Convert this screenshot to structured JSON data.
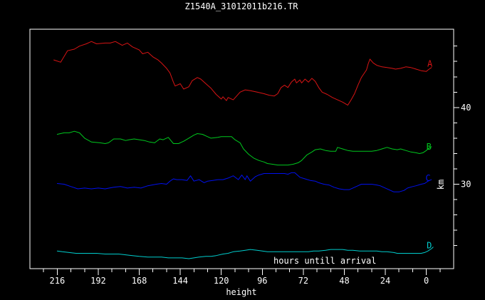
{
  "chart_data": {
    "type": "line",
    "title": "Z1540A_31012011b216.TR",
    "xlabel": "height",
    "ylabel": "km",
    "annotation": "hours untill arrival",
    "background": "#000000",
    "frame_color": "#ffffff",
    "x_axis": {
      "range": [
        232,
        -16
      ],
      "major_ticks": [
        216,
        192,
        168,
        144,
        120,
        96,
        72,
        48,
        24,
        0
      ],
      "minor_step": 8,
      "direction": "decreasing"
    },
    "y_axis": {
      "side": "right",
      "range": [
        50.2,
        19.0
      ],
      "major_ticks": [
        40,
        30
      ],
      "minor_step": 2,
      "minor_min": 22,
      "minor_max": 48
    },
    "series": [
      {
        "name": "A",
        "color": "#d81414",
        "label_pos": [
          -2.1,
          45.7
        ],
        "points": [
          [
            218,
            46.2
          ],
          [
            214,
            45.9
          ],
          [
            210,
            47.4
          ],
          [
            206,
            47.6
          ],
          [
            203,
            48
          ],
          [
            199,
            48.3
          ],
          [
            196,
            48.6
          ],
          [
            193,
            48.3
          ],
          [
            188,
            48.4
          ],
          [
            185,
            48.4
          ],
          [
            182,
            48.6
          ],
          [
            178,
            48.1
          ],
          [
            175,
            48.4
          ],
          [
            172,
            47.9
          ],
          [
            168,
            47.5
          ],
          [
            166,
            47
          ],
          [
            163,
            47.2
          ],
          [
            160,
            46.6
          ],
          [
            157,
            46.2
          ],
          [
            155,
            45.8
          ],
          [
            152,
            45.1
          ],
          [
            150,
            44.5
          ],
          [
            148,
            43.3
          ],
          [
            147,
            42.8
          ],
          [
            144,
            43.1
          ],
          [
            142,
            42.4
          ],
          [
            139,
            42.7
          ],
          [
            137,
            43.5
          ],
          [
            134,
            43.9
          ],
          [
            132,
            43.7
          ],
          [
            129,
            43.1
          ],
          [
            126,
            42.5
          ],
          [
            123,
            41.7
          ],
          [
            120,
            41.1
          ],
          [
            119,
            41.4
          ],
          [
            117,
            40.9
          ],
          [
            116,
            41.3
          ],
          [
            113,
            41
          ],
          [
            111,
            41.5
          ],
          [
            109,
            42
          ],
          [
            106,
            42.3
          ],
          [
            103,
            42.2
          ],
          [
            99,
            42
          ],
          [
            95,
            41.8
          ],
          [
            92,
            41.6
          ],
          [
            89,
            41.5
          ],
          [
            87,
            41.8
          ],
          [
            85,
            42.6
          ],
          [
            83,
            42.9
          ],
          [
            81,
            42.6
          ],
          [
            79,
            43.3
          ],
          [
            77,
            43.7
          ],
          [
            76,
            43.2
          ],
          [
            74,
            43.6
          ],
          [
            73,
            43.2
          ],
          [
            71,
            43.7
          ],
          [
            69,
            43.3
          ],
          [
            67,
            43.8
          ],
          [
            65,
            43.4
          ],
          [
            63,
            42.6
          ],
          [
            61,
            42
          ],
          [
            58,
            41.7
          ],
          [
            55,
            41.3
          ],
          [
            52,
            41
          ],
          [
            49,
            40.7
          ],
          [
            46,
            40.3
          ],
          [
            44,
            41
          ],
          [
            42,
            41.8
          ],
          [
            40,
            42.9
          ],
          [
            38,
            43.9
          ],
          [
            35,
            44.9
          ],
          [
            34,
            45.7
          ],
          [
            33,
            46.3
          ],
          [
            31,
            45.8
          ],
          [
            29,
            45.5
          ],
          [
            26,
            45.3
          ],
          [
            23,
            45.2
          ],
          [
            20,
            45.1
          ],
          [
            18,
            45
          ],
          [
            15,
            45.1
          ],
          [
            12,
            45.3
          ],
          [
            9,
            45.2
          ],
          [
            6,
            45
          ],
          [
            3,
            44.8
          ],
          [
            0,
            44.7
          ],
          [
            -1,
            44.9
          ],
          [
            -3,
            45.2
          ]
        ]
      },
      {
        "name": "B",
        "color": "#00c81e",
        "label_pos": [
          -1.5,
          34.9
        ],
        "points": [
          [
            216,
            36.5
          ],
          [
            212,
            36.7
          ],
          [
            209,
            36.7
          ],
          [
            206,
            36.9
          ],
          [
            203,
            36.7
          ],
          [
            200,
            36
          ],
          [
            196,
            35.5
          ],
          [
            191,
            35.4
          ],
          [
            188,
            35.3
          ],
          [
            186,
            35.4
          ],
          [
            183,
            35.9
          ],
          [
            179,
            35.9
          ],
          [
            176,
            35.7
          ],
          [
            174,
            35.8
          ],
          [
            171,
            35.9
          ],
          [
            168,
            35.8
          ],
          [
            165,
            35.7
          ],
          [
            162,
            35.5
          ],
          [
            159,
            35.4
          ],
          [
            156,
            35.9
          ],
          [
            154,
            35.8
          ],
          [
            151,
            36.1
          ],
          [
            148,
            35.3
          ],
          [
            145,
            35.3
          ],
          [
            142,
            35.6
          ],
          [
            139,
            36
          ],
          [
            136,
            36.4
          ],
          [
            134,
            36.6
          ],
          [
            131,
            36.5
          ],
          [
            128,
            36.2
          ],
          [
            126,
            36
          ],
          [
            122,
            36.1
          ],
          [
            120,
            36.2
          ],
          [
            117,
            36.2
          ],
          [
            114,
            36.2
          ],
          [
            112,
            35.8
          ],
          [
            109,
            35.4
          ],
          [
            107,
            34.6
          ],
          [
            104,
            33.9
          ],
          [
            101,
            33.4
          ],
          [
            98,
            33.1
          ],
          [
            95,
            32.9
          ],
          [
            93,
            32.7
          ],
          [
            90,
            32.6
          ],
          [
            87,
            32.5
          ],
          [
            84,
            32.5
          ],
          [
            81,
            32.5
          ],
          [
            78,
            32.6
          ],
          [
            75,
            32.8
          ],
          [
            73,
            33.1
          ],
          [
            70,
            33.8
          ],
          [
            67,
            34.2
          ],
          [
            65,
            34.5
          ],
          [
            62,
            34.6
          ],
          [
            59,
            34.4
          ],
          [
            56,
            34.3
          ],
          [
            53,
            34.3
          ],
          [
            52,
            34.8
          ],
          [
            49,
            34.6
          ],
          [
            46,
            34.4
          ],
          [
            43,
            34.3
          ],
          [
            40,
            34.3
          ],
          [
            37,
            34.3
          ],
          [
            35,
            34.3
          ],
          [
            32,
            34.3
          ],
          [
            29,
            34.4
          ],
          [
            26,
            34.6
          ],
          [
            23,
            34.8
          ],
          [
            20,
            34.6
          ],
          [
            17,
            34.5
          ],
          [
            15,
            34.6
          ],
          [
            12,
            34.4
          ],
          [
            9,
            34.2
          ],
          [
            6,
            34.1
          ],
          [
            4,
            34
          ],
          [
            2,
            34.1
          ],
          [
            0,
            34.4
          ],
          [
            -2,
            34.8
          ],
          [
            -3,
            34.9
          ]
        ]
      },
      {
        "name": "C",
        "color": "#0010ee",
        "label_pos": [
          -1.0,
          30.8
        ],
        "points": [
          [
            216,
            30.1
          ],
          [
            212,
            30
          ],
          [
            208,
            29.7
          ],
          [
            204,
            29.4
          ],
          [
            200,
            29.5
          ],
          [
            196,
            29.4
          ],
          [
            192,
            29.5
          ],
          [
            188,
            29.4
          ],
          [
            183,
            29.6
          ],
          [
            179,
            29.7
          ],
          [
            175,
            29.5
          ],
          [
            171,
            29.6
          ],
          [
            167,
            29.5
          ],
          [
            163,
            29.8
          ],
          [
            158,
            30
          ],
          [
            155,
            30.1
          ],
          [
            152,
            30
          ],
          [
            150,
            30.4
          ],
          [
            148,
            30.7
          ],
          [
            146,
            30.6
          ],
          [
            143,
            30.6
          ],
          [
            140,
            30.5
          ],
          [
            138,
            31.1
          ],
          [
            136,
            30.4
          ],
          [
            133,
            30.6
          ],
          [
            130,
            30.2
          ],
          [
            128,
            30.4
          ],
          [
            125,
            30.5
          ],
          [
            122,
            30.6
          ],
          [
            119,
            30.6
          ],
          [
            116,
            30.8
          ],
          [
            113,
            31.1
          ],
          [
            110,
            30.6
          ],
          [
            108,
            31.2
          ],
          [
            106,
            30.6
          ],
          [
            105,
            31.1
          ],
          [
            103,
            30.4
          ],
          [
            100,
            31
          ],
          [
            98,
            31.2
          ],
          [
            95,
            31.4
          ],
          [
            92,
            31.4
          ],
          [
            89,
            31.4
          ],
          [
            86,
            31.4
          ],
          [
            83,
            31.4
          ],
          [
            81,
            31.3
          ],
          [
            79,
            31.5
          ],
          [
            77,
            31.5
          ],
          [
            74,
            30.9
          ],
          [
            71,
            30.7
          ],
          [
            68,
            30.5
          ],
          [
            65,
            30.4
          ],
          [
            63,
            30.2
          ],
          [
            60,
            30
          ],
          [
            57,
            29.9
          ],
          [
            54,
            29.6
          ],
          [
            51,
            29.4
          ],
          [
            48,
            29.3
          ],
          [
            45,
            29.3
          ],
          [
            43,
            29.5
          ],
          [
            40,
            29.8
          ],
          [
            38,
            30
          ],
          [
            35,
            30
          ],
          [
            32,
            30
          ],
          [
            29,
            29.9
          ],
          [
            27,
            29.8
          ],
          [
            24,
            29.5
          ],
          [
            21,
            29.2
          ],
          [
            19,
            29
          ],
          [
            16,
            29
          ],
          [
            13,
            29.2
          ],
          [
            11,
            29.5
          ],
          [
            8,
            29.7
          ],
          [
            6,
            29.8
          ],
          [
            3,
            30
          ],
          [
            1,
            30.1
          ],
          [
            -1,
            30.4
          ],
          [
            -3,
            30.6
          ]
        ]
      },
      {
        "name": "D",
        "color": "#00cdcd",
        "label_pos": [
          -1.7,
          22.0
        ],
        "points": [
          [
            216,
            21.3
          ],
          [
            213,
            21.2
          ],
          [
            209,
            21.1
          ],
          [
            205,
            21
          ],
          [
            201,
            21
          ],
          [
            197,
            21
          ],
          [
            193,
            21
          ],
          [
            188,
            20.9
          ],
          [
            184,
            20.9
          ],
          [
            180,
            20.9
          ],
          [
            176,
            20.8
          ],
          [
            172,
            20.7
          ],
          [
            168,
            20.6
          ],
          [
            163,
            20.5
          ],
          [
            159,
            20.5
          ],
          [
            155,
            20.5
          ],
          [
            151,
            20.4
          ],
          [
            147,
            20.4
          ],
          [
            143,
            20.4
          ],
          [
            139,
            20.3
          ],
          [
            136,
            20.4
          ],
          [
            133,
            20.5
          ],
          [
            129,
            20.6
          ],
          [
            126,
            20.6
          ],
          [
            123,
            20.7
          ],
          [
            119,
            20.9
          ],
          [
            116,
            21
          ],
          [
            113,
            21.2
          ],
          [
            109,
            21.3
          ],
          [
            106,
            21.4
          ],
          [
            103,
            21.5
          ],
          [
            99,
            21.4
          ],
          [
            96,
            21.3
          ],
          [
            93,
            21.2
          ],
          [
            89,
            21.2
          ],
          [
            86,
            21.2
          ],
          [
            83,
            21.2
          ],
          [
            79,
            21.2
          ],
          [
            76,
            21.2
          ],
          [
            73,
            21.2
          ],
          [
            69,
            21.2
          ],
          [
            66,
            21.3
          ],
          [
            63,
            21.3
          ],
          [
            59,
            21.4
          ],
          [
            56,
            21.5
          ],
          [
            53,
            21.5
          ],
          [
            49,
            21.5
          ],
          [
            46,
            21.4
          ],
          [
            43,
            21.4
          ],
          [
            39,
            21.3
          ],
          [
            36,
            21.3
          ],
          [
            33,
            21.3
          ],
          [
            29,
            21.3
          ],
          [
            26,
            21.2
          ],
          [
            23,
            21.2
          ],
          [
            19,
            21.1
          ],
          [
            17,
            21
          ],
          [
            13,
            21
          ],
          [
            10,
            21
          ],
          [
            7,
            21
          ],
          [
            3,
            21
          ],
          [
            1,
            21.1
          ],
          [
            -1,
            21.3
          ],
          [
            -3,
            21.6
          ],
          [
            -4,
            21.8
          ]
        ]
      }
    ]
  }
}
